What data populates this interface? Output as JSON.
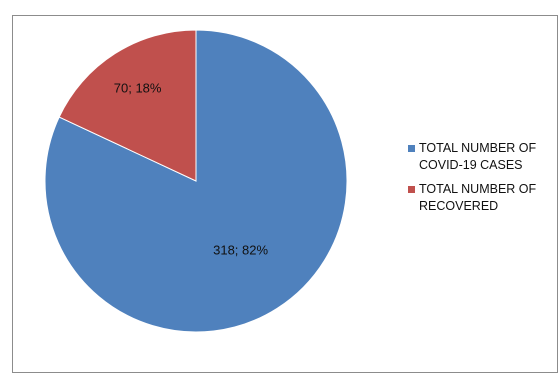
{
  "chart_data": {
    "type": "pie",
    "slices": [
      {
        "label": "TOTAL NUMBER OF\nCOVID-19 CASES",
        "value": 318,
        "percent": 82,
        "data_label": "318; 82%",
        "color": "#4f81bd"
      },
      {
        "label": "TOTAL NUMBER OF\nRECOVERED",
        "value": 70,
        "percent": 18,
        "data_label": "70; 18%",
        "color": "#c0504d"
      }
    ],
    "legend_position": "right"
  }
}
